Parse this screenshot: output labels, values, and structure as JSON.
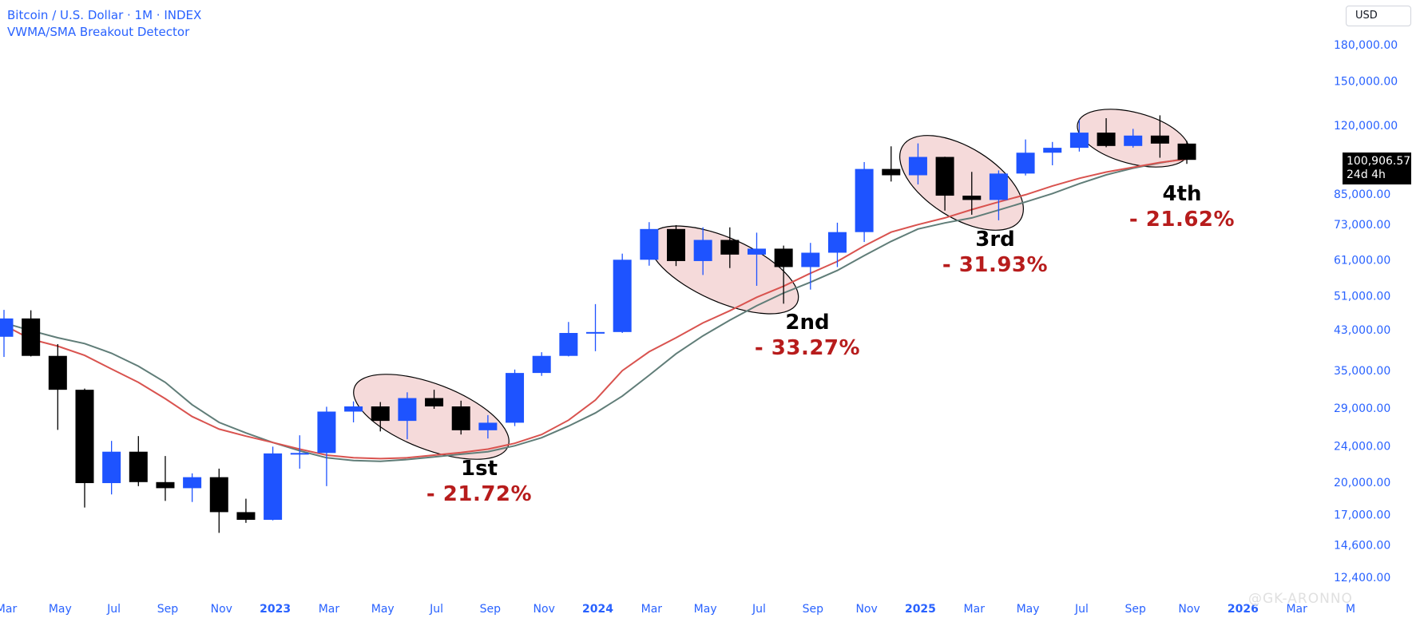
{
  "header": {
    "title": "Bitcoin / U.S. Dollar · 1M · INDEX",
    "indicator": "VWMA/SMA Breakout Detector"
  },
  "currency_button": "USD",
  "price_tag": {
    "price": "100,906.57",
    "countdown": "24d 4h"
  },
  "watermark": "@GK-ARONNO",
  "annotations": [
    {
      "label": "1st",
      "change": "- 21.72%"
    },
    {
      "label": "2nd",
      "change": "- 33.27%"
    },
    {
      "label": "3rd",
      "change": "- 31.93%"
    },
    {
      "label": "4th",
      "change": "- 21.62%"
    }
  ],
  "colors": {
    "up": "#1e53ff",
    "down": "#000000",
    "vwma": "#607d78",
    "sma": "#d9534f",
    "highlight_fill": "#f3d3d3",
    "annotation_pct": "#b71c1c",
    "axis_text": "#2962ff"
  },
  "chart_data": {
    "type": "candlestick",
    "scale": "log",
    "y_axis_labels": [
      "180,000.00",
      "150,000.00",
      "120,000.00",
      "85,000.00",
      "73,000.00",
      "61,000.00",
      "51,000.00",
      "43,000.00",
      "35,000.00",
      "29,000.00",
      "24,000.00",
      "20,000.00",
      "17,000.00",
      "14,600.00",
      "12,400.00"
    ],
    "x_axis_labels": [
      {
        "t": "Mar",
        "i": 0,
        "bold": false
      },
      {
        "t": "May",
        "i": 2,
        "bold": false
      },
      {
        "t": "Jul",
        "i": 4,
        "bold": false
      },
      {
        "t": "Sep",
        "i": 6,
        "bold": false
      },
      {
        "t": "Nov",
        "i": 8,
        "bold": false
      },
      {
        "t": "2023",
        "i": 10,
        "bold": true
      },
      {
        "t": "Mar",
        "i": 12,
        "bold": false
      },
      {
        "t": "May",
        "i": 14,
        "bold": false
      },
      {
        "t": "Jul",
        "i": 16,
        "bold": false
      },
      {
        "t": "Sep",
        "i": 18,
        "bold": false
      },
      {
        "t": "Nov",
        "i": 20,
        "bold": false
      },
      {
        "t": "2024",
        "i": 22,
        "bold": true
      },
      {
        "t": "Mar",
        "i": 24,
        "bold": false
      },
      {
        "t": "May",
        "i": 26,
        "bold": false
      },
      {
        "t": "Jul",
        "i": 28,
        "bold": false
      },
      {
        "t": "Sep",
        "i": 30,
        "bold": false
      },
      {
        "t": "Nov",
        "i": 32,
        "bold": false
      },
      {
        "t": "2025",
        "i": 34,
        "bold": true
      },
      {
        "t": "Mar",
        "i": 36,
        "bold": false
      },
      {
        "t": "May",
        "i": 38,
        "bold": false
      },
      {
        "t": "Jul",
        "i": 40,
        "bold": false
      },
      {
        "t": "Sep",
        "i": 42,
        "bold": false
      },
      {
        "t": "Nov",
        "i": 44,
        "bold": false
      },
      {
        "t": "2026",
        "i": 46,
        "bold": true
      },
      {
        "t": "Mar",
        "i": 48,
        "bold": false
      },
      {
        "t": "M",
        "i": 50,
        "bold": false
      }
    ],
    "candles": [
      {
        "o": 41500,
        "h": 47500,
        "l": 37500,
        "c": 45500
      },
      {
        "o": 45500,
        "h": 47400,
        "l": 37600,
        "c": 37700
      },
      {
        "o": 37700,
        "h": 40000,
        "l": 26000,
        "c": 31800
      },
      {
        "o": 31800,
        "h": 32000,
        "l": 17600,
        "c": 19900
      },
      {
        "o": 19900,
        "h": 24600,
        "l": 18800,
        "c": 23300
      },
      {
        "o": 23300,
        "h": 25200,
        "l": 19600,
        "c": 20000
      },
      {
        "o": 20000,
        "h": 22800,
        "l": 18200,
        "c": 19400
      },
      {
        "o": 19400,
        "h": 20900,
        "l": 18100,
        "c": 20500
      },
      {
        "o": 20500,
        "h": 21400,
        "l": 15500,
        "c": 17200
      },
      {
        "o": 17200,
        "h": 18400,
        "l": 16300,
        "c": 16550
      },
      {
        "o": 16550,
        "h": 23900,
        "l": 16500,
        "c": 23100
      },
      {
        "o": 23100,
        "h": 25300,
        "l": 21400,
        "c": 23150
      },
      {
        "o": 23150,
        "h": 29200,
        "l": 19600,
        "c": 28500
      },
      {
        "o": 28500,
        "h": 30000,
        "l": 27000,
        "c": 29250
      },
      {
        "o": 29250,
        "h": 29900,
        "l": 25800,
        "c": 27200
      },
      {
        "o": 27200,
        "h": 31400,
        "l": 24800,
        "c": 30500
      },
      {
        "o": 30500,
        "h": 31800,
        "l": 28900,
        "c": 29250
      },
      {
        "o": 29250,
        "h": 30100,
        "l": 25400,
        "c": 25950
      },
      {
        "o": 25950,
        "h": 28000,
        "l": 24900,
        "c": 26950
      },
      {
        "o": 26950,
        "h": 35200,
        "l": 26500,
        "c": 34600
      },
      {
        "o": 34600,
        "h": 38400,
        "l": 34100,
        "c": 37700
      },
      {
        "o": 37700,
        "h": 44700,
        "l": 37600,
        "c": 42300
      },
      {
        "o": 42300,
        "h": 48900,
        "l": 38600,
        "c": 42500
      },
      {
        "o": 42500,
        "h": 63000,
        "l": 42300,
        "c": 61100
      },
      {
        "o": 61100,
        "h": 73800,
        "l": 59300,
        "c": 71300
      },
      {
        "o": 71300,
        "h": 72700,
        "l": 59200,
        "c": 60700
      },
      {
        "o": 60700,
        "h": 71900,
        "l": 56600,
        "c": 67500
      },
      {
        "o": 67500,
        "h": 71900,
        "l": 58600,
        "c": 62700
      },
      {
        "o": 62700,
        "h": 70000,
        "l": 53600,
        "c": 64600
      },
      {
        "o": 64600,
        "h": 65600,
        "l": 49000,
        "c": 58900
      },
      {
        "o": 58900,
        "h": 66500,
        "l": 52600,
        "c": 63300
      },
      {
        "o": 63300,
        "h": 73600,
        "l": 58900,
        "c": 70200
      },
      {
        "o": 70200,
        "h": 99800,
        "l": 66800,
        "c": 96400
      },
      {
        "o": 96400,
        "h": 108000,
        "l": 90500,
        "c": 93400
      },
      {
        "o": 93400,
        "h": 109600,
        "l": 89200,
        "c": 102400
      },
      {
        "o": 102400,
        "h": 102500,
        "l": 78200,
        "c": 84300
      },
      {
        "o": 84300,
        "h": 95000,
        "l": 76600,
        "c": 82500
      },
      {
        "o": 82500,
        "h": 95700,
        "l": 74500,
        "c": 94200
      },
      {
        "o": 94200,
        "h": 111800,
        "l": 93300,
        "c": 104600
      },
      {
        "o": 104600,
        "h": 110400,
        "l": 98200,
        "c": 107200
      },
      {
        "o": 107200,
        "h": 123200,
        "l": 105200,
        "c": 115700
      },
      {
        "o": 115700,
        "h": 124400,
        "l": 107500,
        "c": 108200
      },
      {
        "o": 108200,
        "h": 117900,
        "l": 107300,
        "c": 114000
      },
      {
        "o": 114000,
        "h": 126200,
        "l": 102000,
        "c": 109500
      },
      {
        "o": 109500,
        "h": 111000,
        "l": 98900,
        "c": 100906.57
      }
    ],
    "series": [
      {
        "name": "VWMA",
        "values": [
          44500,
          42800,
          41300,
          40100,
          38200,
          35800,
          33000,
          29500,
          27000,
          25600,
          24400,
          23400,
          22600,
          22300,
          22200,
          22400,
          22700,
          23000,
          23300,
          24000,
          25000,
          26500,
          28300,
          30800,
          34200,
          38100,
          41700,
          45100,
          48500,
          51700,
          54600,
          57900,
          62400,
          67000,
          71300,
          73500,
          75400,
          78400,
          81700,
          85200,
          89500,
          93600,
          96800,
          99400,
          101600
        ]
      },
      {
        "name": "SMA",
        "values": [
          44000,
          41000,
          39600,
          37800,
          35300,
          33000,
          30400,
          27800,
          26100,
          25200,
          24400,
          23600,
          22900,
          22600,
          22500,
          22600,
          22900,
          23200,
          23600,
          24300,
          25400,
          27300,
          30200,
          35000,
          38500,
          41300,
          44500,
          47300,
          50600,
          53500,
          57100,
          60600,
          65500,
          70200,
          72900,
          75400,
          78600,
          81700,
          84700,
          88500,
          92000,
          94900,
          97200,
          99600,
          101300
        ]
      }
    ]
  }
}
